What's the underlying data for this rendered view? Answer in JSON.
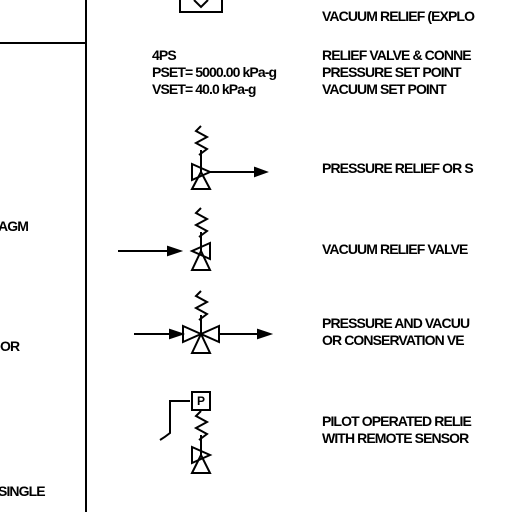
{
  "left_column": {
    "items": [
      {
        "text": "AGM"
      },
      {
        "text": "OR"
      },
      {
        "text": "SINGLE"
      }
    ]
  },
  "symbols": [
    {
      "icon": "vacuum-relief-symbol",
      "lines": [
        "VACUUM RELIEF (EXPLO"
      ]
    },
    {
      "icon": "relief-valve-connection-tag",
      "lines": [
        "RELIEF VALVE & CONNE",
        "PRESSURE SET POINT",
        "VACUUM SET POINT"
      ]
    },
    {
      "icon": "pressure-relief-valve-symbol",
      "lines": [
        "PRESSURE RELIEF OR S"
      ]
    },
    {
      "icon": "vacuum-relief-valve-symbol",
      "lines": [
        "VACUUM RELIEF VALVE"
      ]
    },
    {
      "icon": "pressure-vacuum-relief-valve-symbol",
      "lines": [
        "PRESSURE AND  VACUU",
        "OR CONSERVATION VE"
      ]
    },
    {
      "icon": "pilot-operated-relief-valve-symbol",
      "lines": [
        "PILOT OPERATED RELIE",
        "WITH REMOTE SENSOR"
      ]
    }
  ],
  "tag": {
    "id": "4PS",
    "pset": "PSET= 5000.00 kPa-g",
    "vset": "VSET= 40.0 kPa-g"
  },
  "pilot_box_label": "P"
}
